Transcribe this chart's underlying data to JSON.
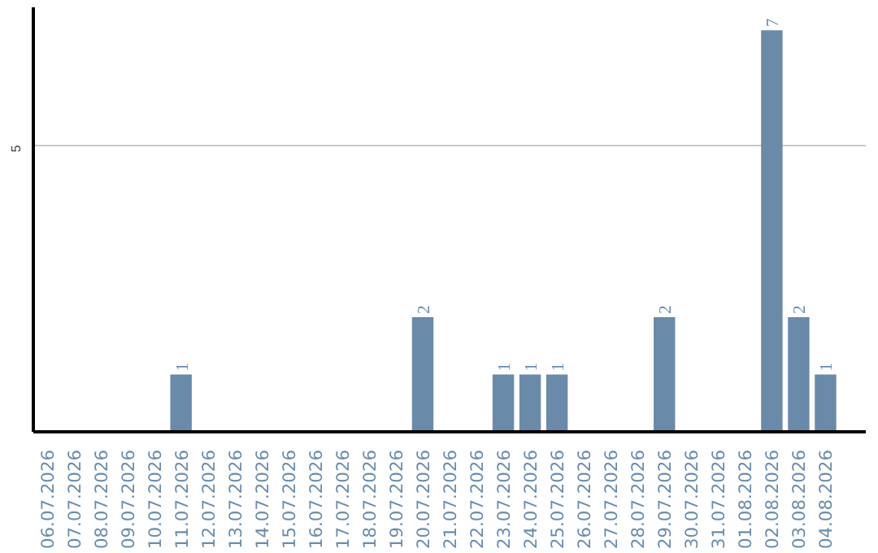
{
  "chart_data": {
    "type": "bar",
    "categories": [
      "06.07.2026",
      "07.07.2026",
      "08.07.2026",
      "09.07.2026",
      "10.07.2026",
      "11.07.2026",
      "12.07.2026",
      "13.07.2026",
      "14.07.2026",
      "15.07.2026",
      "16.07.2026",
      "17.07.2026",
      "18.07.2026",
      "19.07.2026",
      "20.07.2026",
      "21.07.2026",
      "22.07.2026",
      "23.07.2026",
      "24.07.2026",
      "25.07.2026",
      "26.07.2026",
      "27.07.2026",
      "28.07.2026",
      "29.07.2026",
      "30.07.2026",
      "31.07.2026",
      "01.08.2026",
      "02.08.2026",
      "03.08.2026",
      "04.08.2026"
    ],
    "values": [
      0,
      0,
      0,
      0,
      0,
      1,
      0,
      0,
      0,
      0,
      0,
      0,
      0,
      0,
      2,
      0,
      0,
      1,
      1,
      1,
      0,
      0,
      0,
      2,
      0,
      0,
      0,
      7,
      2,
      1
    ],
    "value_labels": [
      null,
      null,
      null,
      null,
      null,
      "1",
      null,
      null,
      null,
      null,
      null,
      null,
      null,
      null,
      "2",
      null,
      null,
      "1",
      "1",
      "1",
      null,
      null,
      null,
      "2",
      null,
      null,
      null,
      "7",
      "2",
      "1"
    ],
    "color": "#6a8aaa",
    "ylim": [
      0,
      7.4
    ],
    "yticks": [
      5
    ],
    "grid": "y"
  }
}
